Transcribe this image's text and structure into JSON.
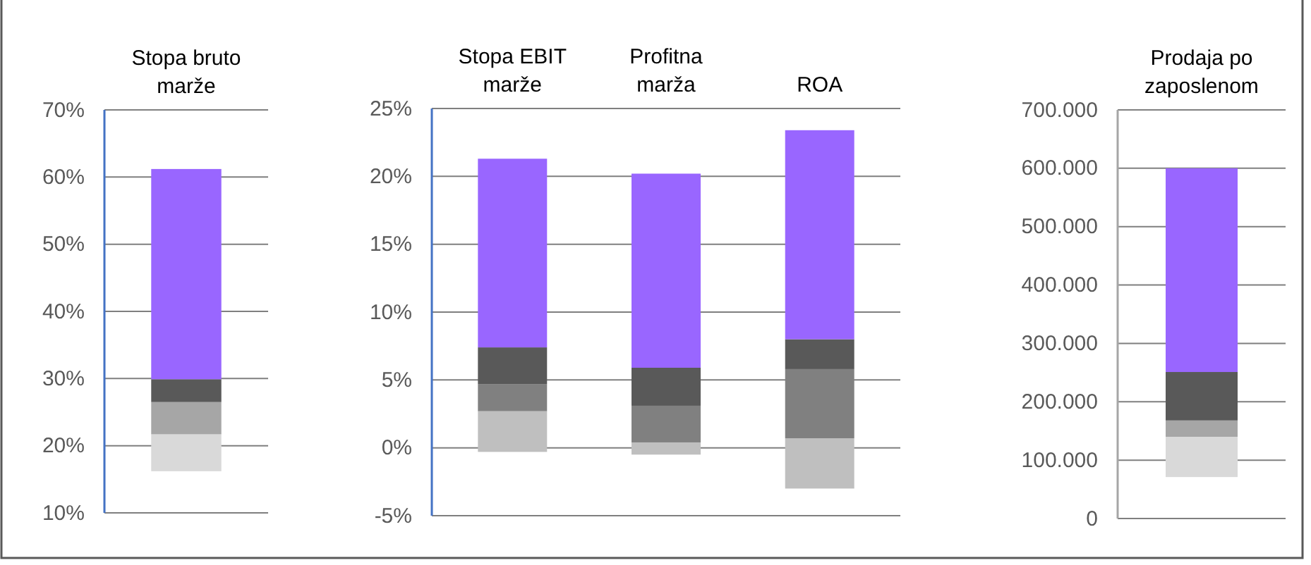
{
  "chart_data": [
    {
      "type": "bar",
      "categories": [
        "Stopa bruto marže"
      ],
      "series": [
        {
          "color": "#d9d9d9",
          "base": [
            16.2
          ],
          "values": [
            5.5
          ]
        },
        {
          "color": "#a6a6a6",
          "base": [
            21.7
          ],
          "values": [
            4.8
          ]
        },
        {
          "color": "#595959",
          "base": [
            26.5
          ],
          "values": [
            3.4
          ]
        },
        {
          "color": "#9966ff",
          "base": [
            29.9
          ],
          "values": [
            31.3
          ]
        }
      ],
      "ylim": [
        10,
        70
      ],
      "yticks": [
        {
          "value": 10,
          "label": "10%"
        },
        {
          "value": 20,
          "label": "20%"
        },
        {
          "value": 30,
          "label": "30%"
        },
        {
          "value": 40,
          "label": "40%"
        },
        {
          "value": 50,
          "label": "50%"
        },
        {
          "value": 60,
          "label": "60%"
        },
        {
          "value": 70,
          "label": "70%"
        }
      ],
      "grid": "y"
    },
    {
      "type": "bar",
      "categories": [
        "Stopa EBIT marže",
        "Profitna marža",
        "ROA"
      ],
      "series": [
        {
          "color": "#bfbfbf",
          "base": [
            -0.3,
            -0.5,
            -3.0
          ],
          "values": [
            3.0,
            0.9,
            3.7
          ]
        },
        {
          "color": "#808080",
          "base": [
            2.7,
            0.4,
            0.7
          ],
          "values": [
            2.0,
            2.7,
            5.1
          ]
        },
        {
          "color": "#595959",
          "base": [
            4.7,
            3.1,
            5.8
          ],
          "values": [
            2.7,
            2.8,
            2.2
          ]
        },
        {
          "color": "#9966ff",
          "base": [
            7.4,
            5.9,
            8.0
          ],
          "values": [
            13.9,
            14.3,
            15.4
          ]
        }
      ],
      "ylim": [
        -5,
        25
      ],
      "yticks": [
        {
          "value": -5,
          "label": "-5%"
        },
        {
          "value": 0,
          "label": "0%"
        },
        {
          "value": 5,
          "label": "5%"
        },
        {
          "value": 10,
          "label": "10%"
        },
        {
          "value": 15,
          "label": "15%"
        },
        {
          "value": 20,
          "label": "20%"
        },
        {
          "value": 25,
          "label": "25%"
        }
      ],
      "grid": "y"
    },
    {
      "type": "bar",
      "categories": [
        "Prodaja po zaposlenom"
      ],
      "series": [
        {
          "color": "#d9d9d9",
          "base": [
            71000
          ],
          "values": [
            69000
          ]
        },
        {
          "color": "#a6a6a6",
          "base": [
            140000
          ],
          "values": [
            28000
          ]
        },
        {
          "color": "#595959",
          "base": [
            168000
          ],
          "values": [
            83000
          ]
        },
        {
          "color": "#9966ff",
          "base": [
            251000
          ],
          "values": [
            349000
          ]
        }
      ],
      "ylim": [
        0,
        700000
      ],
      "yticks": [
        0,
        {
          "value": 100000,
          "label": "100.000"
        },
        {
          "value": 200000,
          "label": "200.000"
        },
        {
          "value": 300000,
          "label": "300.000"
        },
        {
          "value": 400000,
          "label": "400.000"
        },
        {
          "value": 500000,
          "label": "500.000"
        },
        {
          "value": 600000,
          "label": "600.000"
        },
        {
          "value": 700000,
          "label": "700.000"
        }
      ],
      "grid": "y"
    }
  ]
}
